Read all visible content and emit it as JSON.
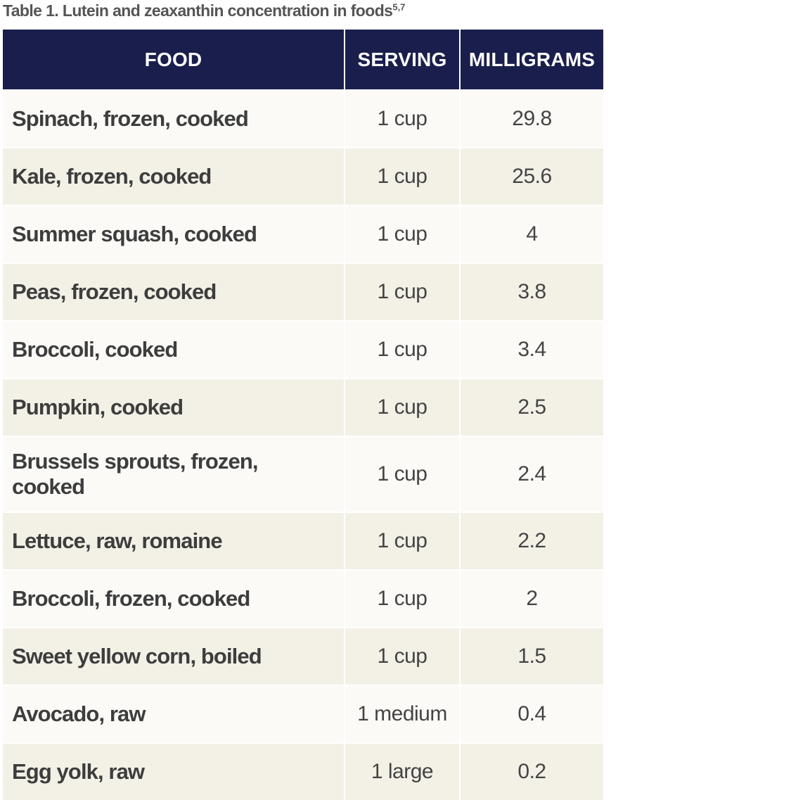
{
  "caption": {
    "text": "Table 1. Lutein and zeaxanthin concentration in foods",
    "superscript": "5,7"
  },
  "headers": {
    "food": "FOOD",
    "serving": "SERVING",
    "milligrams": "MILLIGRAMS"
  },
  "colors": {
    "header_bg": "#1a1e4c",
    "row_light": "#fbfaf7",
    "row_shaded": "#f3f0e6"
  },
  "rows": [
    {
      "food": "Spinach, frozen, cooked",
      "serving": "1 cup",
      "mg": "29.8"
    },
    {
      "food": "Kale, frozen, cooked",
      "serving": "1 cup",
      "mg": "25.6"
    },
    {
      "food": "Summer squash, cooked",
      "serving": "1 cup",
      "mg": "4"
    },
    {
      "food": "Peas, frozen, cooked",
      "serving": "1 cup",
      "mg": "3.8"
    },
    {
      "food": "Broccoli, cooked",
      "serving": "1 cup",
      "mg": "3.4"
    },
    {
      "food": "Pumpkin, cooked",
      "serving": "1 cup",
      "mg": "2.5"
    },
    {
      "food": "Brussels sprouts, frozen, cooked",
      "serving": "1 cup",
      "mg": "2.4"
    },
    {
      "food": "Lettuce, raw, romaine",
      "serving": "1 cup",
      "mg": "2.2"
    },
    {
      "food": "Broccoli, frozen, cooked",
      "serving": "1 cup",
      "mg": "2"
    },
    {
      "food": "Sweet yellow corn, boiled",
      "serving": "1 cup",
      "mg": "1.5"
    },
    {
      "food": "Avocado, raw",
      "serving": "1 medium",
      "mg": "0.4"
    },
    {
      "food": "Egg yolk, raw",
      "serving": "1 large",
      "mg": "0.2"
    }
  ]
}
